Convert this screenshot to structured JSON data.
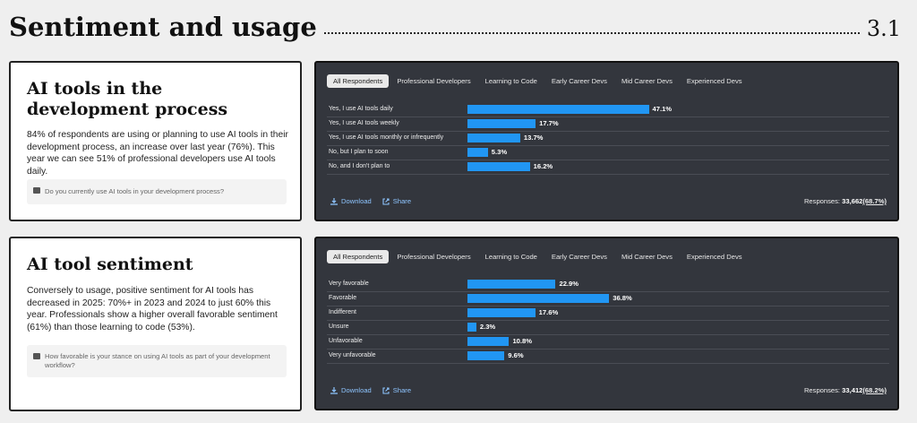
{
  "header": {
    "title": "Sentiment and usage",
    "section": "3.1"
  },
  "cards": [
    {
      "title": "AI tools in the development process",
      "body": "84% of respondents are using or planning to use AI tools in their development process, an increase over last year (76%). This year we can see 51% of professional developers use AI tools daily.",
      "question": "Do you currently use AI tools in your development process?"
    },
    {
      "title": "AI tool sentiment",
      "body": "Conversely to usage, positive sentiment for AI tools has decreased in 2025: 70%+ in 2023 and 2024 to just 60% this year. Professionals show a higher overall favorable sentiment (61%) than those learning to code (53%).",
      "question": "How favorable is your stance on using AI tools as part of your development workflow?"
    }
  ],
  "tabs": [
    "All Respondents",
    "Professional Developers",
    "Learning to Code",
    "Early Career Devs",
    "Mid Career Devs",
    "Experienced Devs"
  ],
  "actions": {
    "download": "Download",
    "share": "Share"
  },
  "colors": {
    "bar": "#2196f3",
    "panel": "#33363d"
  },
  "chart_data": [
    {
      "type": "bar",
      "categories": [
        "Yes, I use AI tools daily",
        "Yes, I use AI tools weekly",
        "Yes, I use AI tools monthly or infrequently",
        "No, but I plan to soon",
        "No, and I don't plan to"
      ],
      "values": [
        47.1,
        17.7,
        13.7,
        5.3,
        16.2
      ],
      "value_labels": [
        "47.1%",
        "17.7%",
        "13.7%",
        "5.3%",
        "16.2%"
      ],
      "responses_label": "Responses:",
      "responses_count": "33,662",
      "responses_pct": "(68.7%)"
    },
    {
      "type": "bar",
      "categories": [
        "Very favorable",
        "Favorable",
        "Indifferent",
        "Unsure",
        "Unfavorable",
        "Very unfavorable"
      ],
      "values": [
        22.9,
        36.8,
        17.6,
        2.3,
        10.8,
        9.6
      ],
      "value_labels": [
        "22.9%",
        "36.8%",
        "17.6%",
        "2.3%",
        "10.8%",
        "9.6%"
      ],
      "responses_label": "Responses:",
      "responses_count": "33,412",
      "responses_pct": "(68.2%)"
    }
  ]
}
